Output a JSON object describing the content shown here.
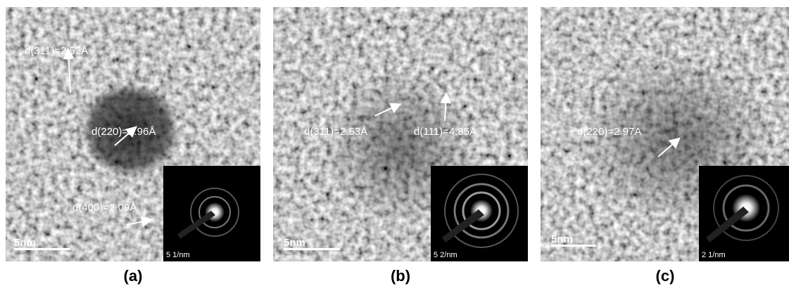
{
  "panels": [
    {
      "label": "(a)",
      "annotations": [
        "d(311)=2.52Å",
        "d(220)=2.96Å",
        "d(400)=2.09Å"
      ],
      "scale_bar": "5nm",
      "inset_scale": "5 1/nm"
    },
    {
      "label": "(b)",
      "annotations": [
        "d(311)=2.53Å",
        "d(111)=4.85Å"
      ],
      "scale_bar": "5nm",
      "inset_scale": "5 2/nm"
    },
    {
      "label": "(c)",
      "annotations": [
        "d(220)=2.97A"
      ],
      "scale_bar": "5nm",
      "inset_scale": "2 1/nm"
    }
  ]
}
